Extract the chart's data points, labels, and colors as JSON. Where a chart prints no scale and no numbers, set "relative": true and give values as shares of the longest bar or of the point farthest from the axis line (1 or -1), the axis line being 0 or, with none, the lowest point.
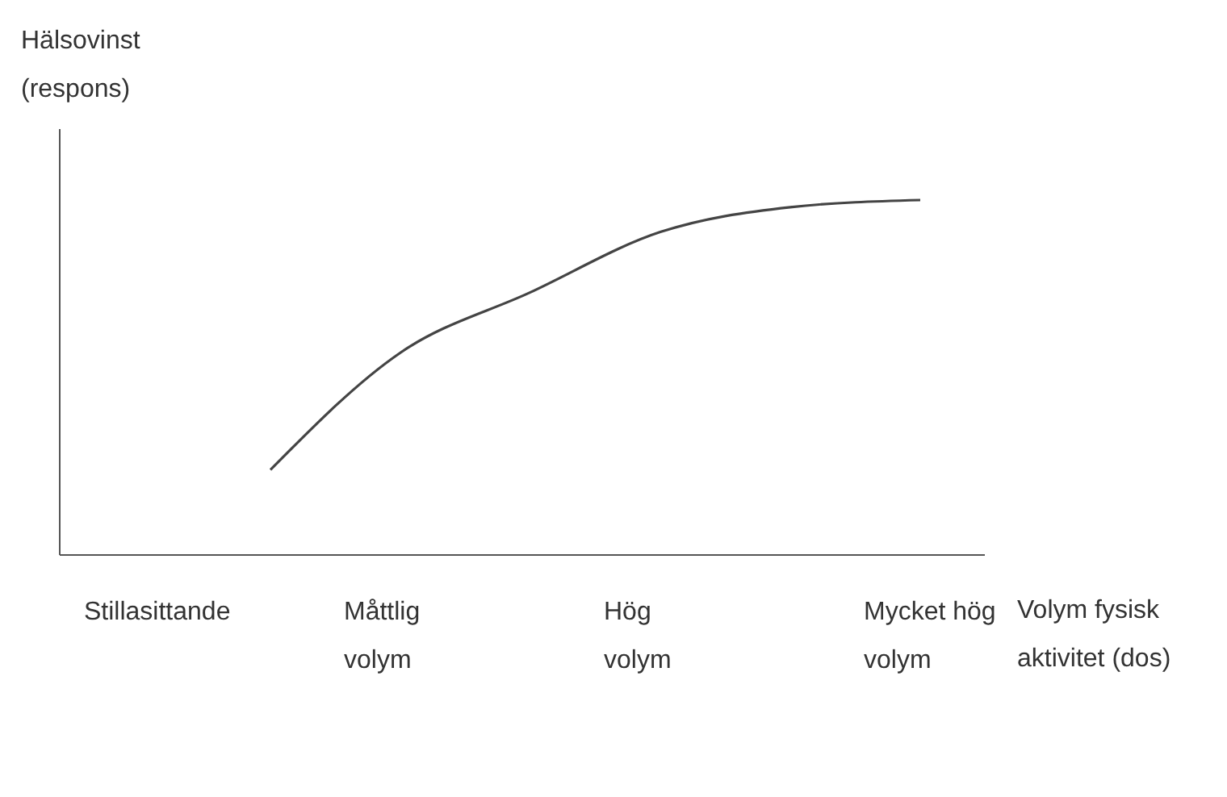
{
  "chart_data": {
    "type": "line",
    "relative": true,
    "xlabel": "Volym fysisk aktivitet (dos)",
    "ylabel": "Hälsovinst (respons)",
    "categories": [
      "Stillasittande",
      null,
      "Måttlig volym",
      null,
      "Hög volym",
      null,
      "Mycket hög volym"
    ],
    "series": [
      {
        "color": "#444444",
        "values": [
          null,
          0.24,
          0.57,
          0.74,
          0.91,
          0.98,
          1.0
        ]
      }
    ]
  }
}
